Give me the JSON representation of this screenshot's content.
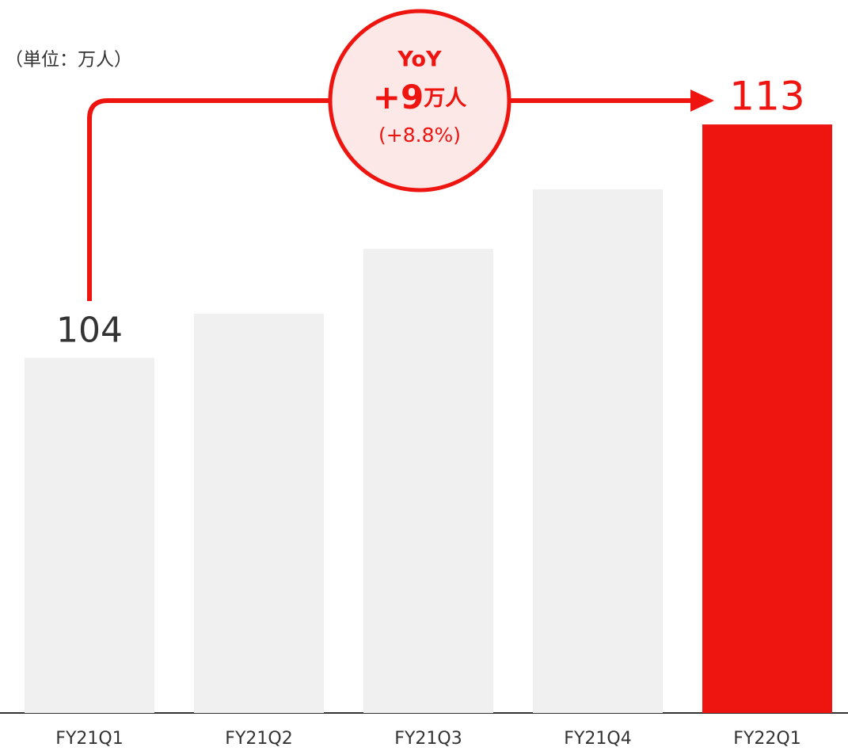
{
  "chart_data": {
    "type": "bar",
    "unit_label": "（単位：万人）",
    "categories": [
      "FY21Q1",
      "FY21Q2",
      "FY21Q3",
      "FY21Q4",
      "FY22Q1"
    ],
    "values": [
      104,
      105.7,
      108.2,
      110.5,
      113
    ],
    "value_labels": [
      "104",
      null,
      null,
      null,
      "113"
    ],
    "colors": [
      "#f0f0f0",
      "#f0f0f0",
      "#f0f0f0",
      "#f0f0f0",
      "#ee1410"
    ],
    "ylim": [
      90.3,
      117.8
    ],
    "annotation": {
      "title": "YoY",
      "value": "+9",
      "unit": "万人",
      "percent": "(+8.8%)"
    }
  }
}
